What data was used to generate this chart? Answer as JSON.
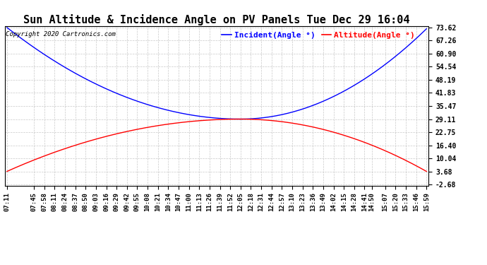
{
  "title": "Sun Altitude & Incidence Angle on PV Panels Tue Dec 29 16:04",
  "copyright": "Copyright 2020 Cartronics.com",
  "legend_incident_label": "Incident(Angle °)",
  "legend_altitude_label": "Altitude(Angle °)",
  "legend_incident_color": "blue",
  "legend_altitude_color": "red",
  "yticks": [
    -2.68,
    3.68,
    10.04,
    16.4,
    22.75,
    29.11,
    35.47,
    41.83,
    48.19,
    54.54,
    60.9,
    67.26,
    73.62
  ],
  "xtick_labels": [
    "07:11",
    "07:45",
    "07:58",
    "08:11",
    "08:24",
    "08:37",
    "08:50",
    "09:03",
    "09:16",
    "09:29",
    "09:42",
    "09:55",
    "10:08",
    "10:21",
    "10:34",
    "10:47",
    "11:00",
    "11:13",
    "11:26",
    "11:39",
    "11:52",
    "12:05",
    "12:18",
    "12:31",
    "12:44",
    "12:57",
    "13:10",
    "13:23",
    "13:36",
    "13:49",
    "14:02",
    "14:15",
    "14:28",
    "14:41",
    "14:50",
    "15:07",
    "15:20",
    "15:33",
    "15:46",
    "15:59"
  ],
  "ylim_min": -2.68,
  "ylim_max": 73.62,
  "background_color": "#ffffff",
  "grid_color": "#bbbbbb",
  "line_incident_color": "blue",
  "line_altitude_color": "red",
  "title_fontsize": 11,
  "copyright_fontsize": 6.5,
  "legend_fontsize": 8,
  "tick_fontsize": 6.5,
  "ytick_fontsize": 7
}
